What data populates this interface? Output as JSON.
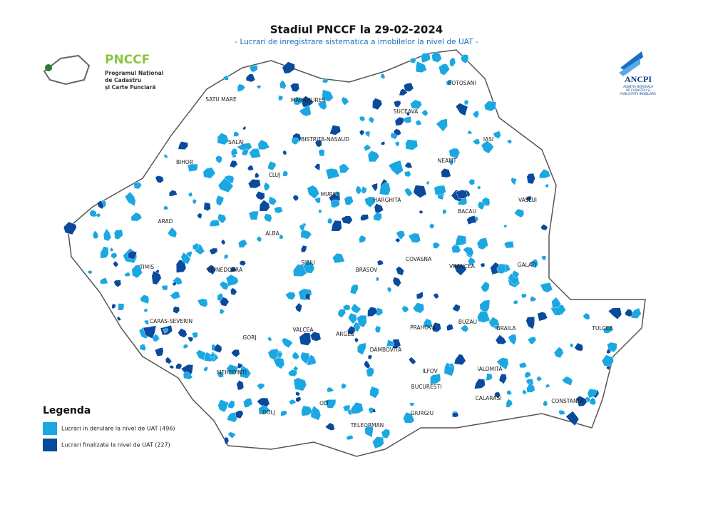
{
  "header": {
    "title": "Stadiul PNCCF la 29-02-2024",
    "subtitle": "- Lucrari de inregistrare sistematica a imobilelor la nivel de UAT -"
  },
  "logos": {
    "pnccf": {
      "name": "PNCCF",
      "lines": [
        "Programul Național",
        "de Cadastru",
        "și Carte Funciară"
      ]
    },
    "ancpi": {
      "name": "ANCPI",
      "lines": [
        "AGENȚIA NAȚIONALĂ",
        "DE CADASTRU ȘI",
        "PUBLICITATE IMOBILIARĂ"
      ]
    }
  },
  "counties": [
    "SATU MARE",
    "MARAMURES",
    "BOTOSANI",
    "SUCEAVA",
    "SALAJ",
    "BISTRITA-NASAUD",
    "IASI",
    "BIHOR",
    "CLUJ",
    "NEAMT",
    "MURES",
    "HARGHITA",
    "VASLUI",
    "ARAD",
    "ALBA",
    "BACAU",
    "SIBIU",
    "COVASNA",
    "TIMIS",
    "HUNEDOARA",
    "BRASOV",
    "VRANCEA",
    "GALATI",
    "CARAS-SEVERIN",
    "GORJ",
    "VALCEA",
    "ARGES",
    "PRAHOVA",
    "BUZAU",
    "BRAILA",
    "TULCEA",
    "DAMBOVITA",
    "MEHEDINTI",
    "ILFOV",
    "IALOMITA",
    "BUCURESTI",
    "CALARASI",
    "CONSTANTA",
    "DOLJ",
    "OLT",
    "TELEORMAN",
    "GIURGIU"
  ],
  "legend": {
    "title": "Legenda",
    "items": [
      {
        "label": "Lucrari in derulare la nivel de UAT (496)",
        "color": "#1ba7e1"
      },
      {
        "label": "Lucrari finalizate la nivel de UAT (227)",
        "color": "#0a4a9c"
      }
    ]
  }
}
